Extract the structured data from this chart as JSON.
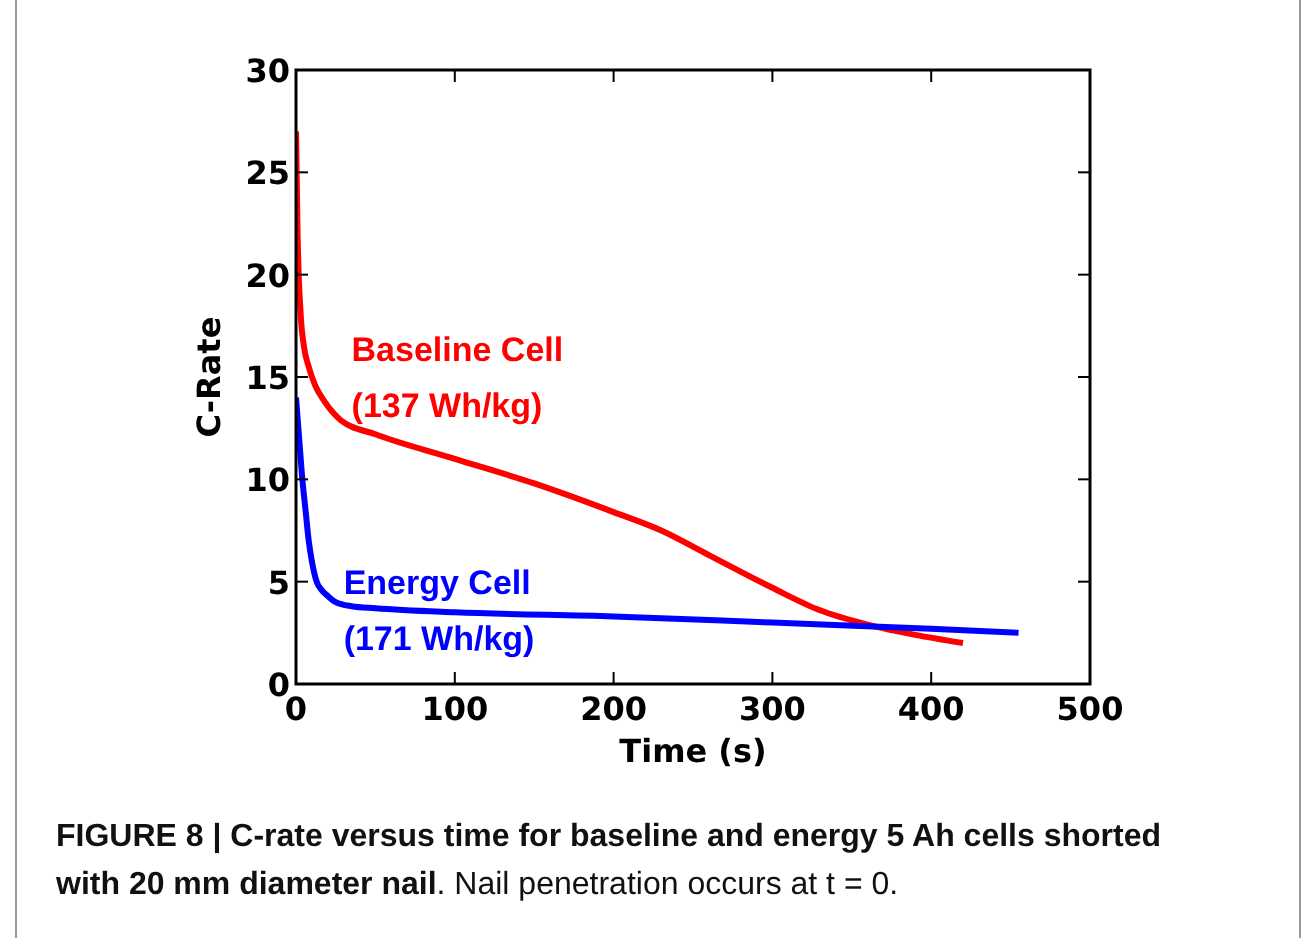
{
  "chart_data": {
    "type": "line",
    "xlabel": "Time (s)",
    "ylabel": "C-Rate",
    "xlim": [
      0,
      500
    ],
    "ylim": [
      0,
      30
    ],
    "xticks": [
      0,
      100,
      200,
      300,
      400,
      500
    ],
    "yticks": [
      0,
      5,
      10,
      15,
      20,
      25,
      30
    ],
    "grid": false,
    "line_style": "solid",
    "marker": "none",
    "series": [
      {
        "name": "Baseline Cell\n(137 Wh/kg)",
        "color": "#ff0000",
        "x": [
          0,
          1,
          3,
          5,
          8,
          12,
          18,
          24,
          28,
          50,
          100,
          150,
          200,
          230,
          260,
          300,
          330,
          360,
          390,
          420
        ],
        "values": [
          27,
          22,
          18,
          16.5,
          15.5,
          14.6,
          13.8,
          13.2,
          12.9,
          12.2,
          11,
          9.8,
          8.4,
          7.5,
          6.3,
          4.7,
          3.6,
          2.9,
          2.4,
          2
        ]
      },
      {
        "name": "Energy Cell\n(171 Wh/kg)",
        "color": "#0000ff",
        "x": [
          0,
          2,
          4,
          6,
          8,
          10,
          13,
          16,
          20,
          25,
          35,
          50,
          100,
          200,
          300,
          400,
          455
        ],
        "values": [
          14,
          12,
          10,
          8.5,
          7,
          6,
          5,
          4.6,
          4.3,
          4,
          3.8,
          3.7,
          3.5,
          3.3,
          3,
          2.7,
          2.5
        ]
      }
    ],
    "annotations": [
      "FIGURE 8 | C-rate versus time for baseline and energy 5 Ah cells shorted with 20 mm diameter nail",
      ". Nail penetration occurs at t = 0."
    ]
  }
}
